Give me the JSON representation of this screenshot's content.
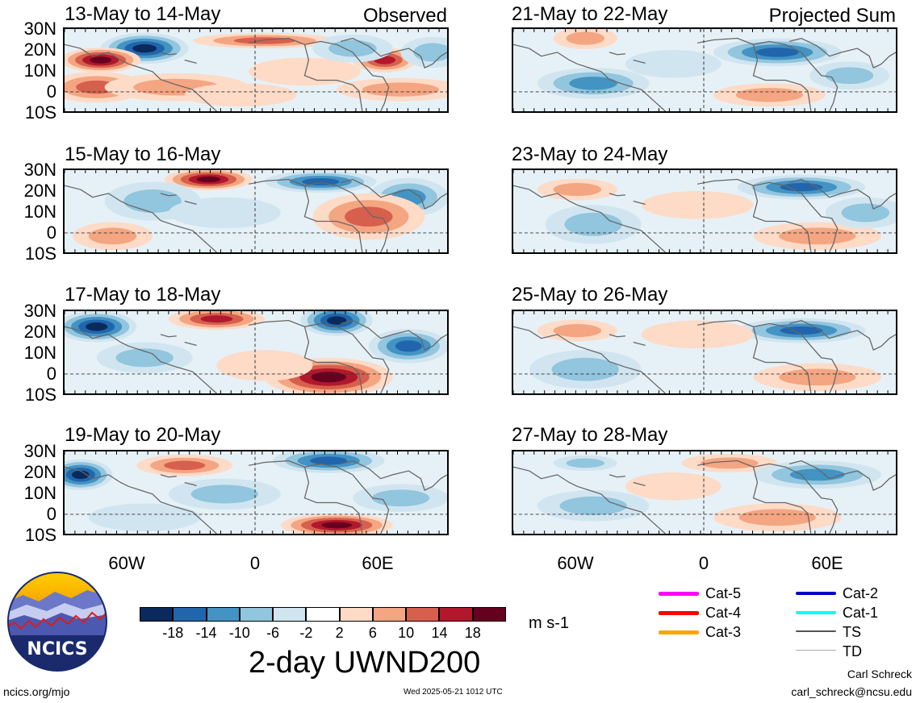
{
  "panels": [
    {
      "title": "13-May to 14-May",
      "label": "Observed"
    },
    {
      "title": "15-May to 16-May",
      "label": ""
    },
    {
      "title": "17-May to 18-May",
      "label": ""
    },
    {
      "title": "19-May to 20-May",
      "label": ""
    },
    {
      "title": "21-May to 22-May",
      "label": "Projected Sum"
    },
    {
      "title": "23-May to 24-May",
      "label": ""
    },
    {
      "title": "25-May to 26-May",
      "label": ""
    },
    {
      "title": "27-May to 28-May",
      "label": ""
    }
  ],
  "lat_labels": [
    "30N",
    "20N",
    "10N",
    "0",
    "10S"
  ],
  "lon_labels": [
    "60W",
    "0",
    "60E"
  ],
  "colorbar": {
    "colors": [
      "#0b2a5c",
      "#2166ac",
      "#4393c3",
      "#92c5de",
      "#d1e5f0",
      "#ffffff",
      "#fddbc7",
      "#f4a582",
      "#d6604d",
      "#b2182b",
      "#67001f"
    ],
    "ticks": [
      "-18",
      "-14",
      "-10",
      "-6",
      "-2",
      "2",
      "6",
      "10",
      "14",
      "18"
    ],
    "units": "m s-1",
    "title": "2-day UWND200"
  },
  "legend": [
    {
      "label": "Cat-5",
      "color": "#ff00ff"
    },
    {
      "label": "Cat-4",
      "color": "#ff0000"
    },
    {
      "label": "Cat-3",
      "color": "#ffa500"
    },
    {
      "label": "Cat-2",
      "color": "#0000cc"
    },
    {
      "label": "Cat-1",
      "color": "#00ffff"
    },
    {
      "label": "TS",
      "color": "#555555"
    },
    {
      "label": "TD",
      "color": "#aaaaaa"
    }
  ],
  "logo_text": "NCICS",
  "footer": {
    "site": "ncics.org/mjo",
    "timestamp": "Wed 2025-05-21 1012 UTC",
    "author": "Carl Schreck",
    "email": "carl_schreck@ncsu.edu"
  }
}
